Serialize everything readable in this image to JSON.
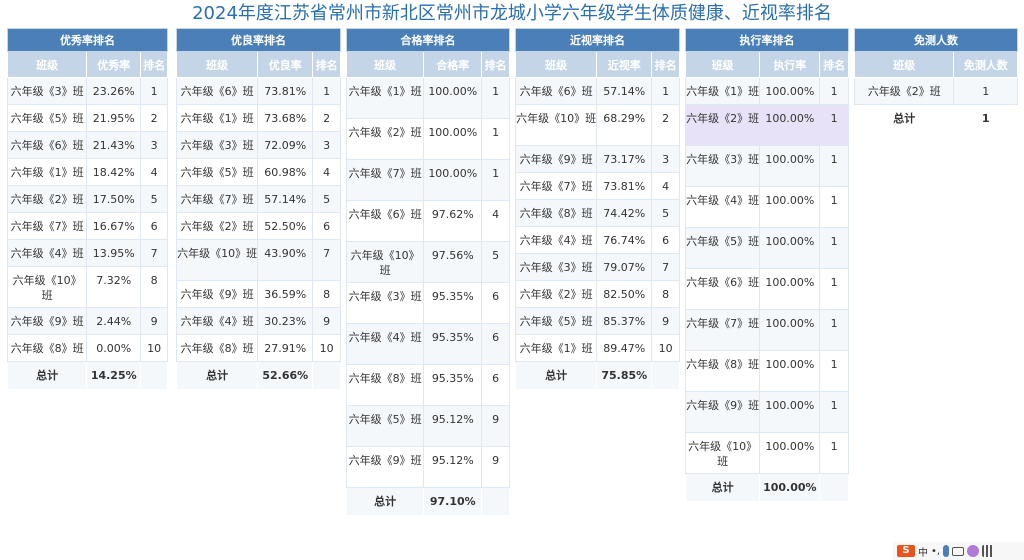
{
  "title": "2024年度江苏省常州市新北区常州市龙城小学六年级学生体质健康、近视率排名",
  "total_label": "总计",
  "panels": [
    {
      "caption": "优秀率排名",
      "headers": [
        "班级",
        "优秀率",
        "排名"
      ],
      "rows": [
        [
          "六年级《3》班",
          "23.26%",
          "1"
        ],
        [
          "六年级《5》班",
          "21.95%",
          "2"
        ],
        [
          "六年级《6》班",
          "21.43%",
          "3"
        ],
        [
          "六年级《1》班",
          "18.42%",
          "4"
        ],
        [
          "六年级《2》班",
          "17.50%",
          "5"
        ],
        [
          "六年级《7》班",
          "16.67%",
          "6"
        ],
        [
          "六年级《4》班",
          "13.95%",
          "7"
        ],
        [
          "六年级《10》班",
          "7.32%",
          "8"
        ],
        [
          "六年级《9》班",
          "2.44%",
          "9"
        ],
        [
          "六年级《8》班",
          "0.00%",
          "10"
        ]
      ],
      "total": "14.25%"
    },
    {
      "caption": "优良率排名",
      "headers": [
        "班级",
        "优良率",
        "排名"
      ],
      "rows": [
        [
          "六年级《6》班",
          "73.81%",
          "1"
        ],
        [
          "六年级《1》班",
          "73.68%",
          "2"
        ],
        [
          "六年级《3》班",
          "72.09%",
          "3"
        ],
        [
          "六年级《5》班",
          "60.98%",
          "4"
        ],
        [
          "六年级《7》班",
          "57.14%",
          "5"
        ],
        [
          "六年级《2》班",
          "52.50%",
          "6"
        ],
        [
          "六年级《10》班",
          "43.90%",
          "7"
        ],
        [
          "六年级《9》班",
          "36.59%",
          "8"
        ],
        [
          "六年级《4》班",
          "30.23%",
          "9"
        ],
        [
          "六年级《8》班",
          "27.91%",
          "10"
        ]
      ],
      "total": "52.66%"
    },
    {
      "caption": "合格率排名",
      "headers": [
        "班级",
        "合格率",
        "排名"
      ],
      "rows": [
        [
          "六年级《1》班",
          "100.00%",
          "1"
        ],
        [
          "六年级《2》班",
          "100.00%",
          "1"
        ],
        [
          "六年级《7》班",
          "100.00%",
          "1"
        ],
        [
          "六年级《6》班",
          "97.62%",
          "4"
        ],
        [
          "六年级《10》班",
          "97.56%",
          "5"
        ],
        [
          "六年级《3》班",
          "95.35%",
          "6"
        ],
        [
          "六年级《4》班",
          "95.35%",
          "6"
        ],
        [
          "六年级《8》班",
          "95.35%",
          "6"
        ],
        [
          "六年级《5》班",
          "95.12%",
          "9"
        ],
        [
          "六年级《9》班",
          "95.12%",
          "9"
        ]
      ],
      "total": "97.10%"
    },
    {
      "caption": "近视率排名",
      "headers": [
        "班级",
        "近视率",
        "排名"
      ],
      "rows": [
        [
          "六年级《6》班",
          "57.14%",
          "1"
        ],
        [
          "六年级《10》班",
          "68.29%",
          "2"
        ],
        [
          "六年级《9》班",
          "73.17%",
          "3"
        ],
        [
          "六年级《7》班",
          "73.81%",
          "4"
        ],
        [
          "六年级《8》班",
          "74.42%",
          "5"
        ],
        [
          "六年级《4》班",
          "76.74%",
          "6"
        ],
        [
          "六年级《3》班",
          "79.07%",
          "7"
        ],
        [
          "六年级《2》班",
          "82.50%",
          "8"
        ],
        [
          "六年级《5》班",
          "85.37%",
          "9"
        ],
        [
          "六年级《1》班",
          "89.47%",
          "10"
        ]
      ],
      "total": "75.85%"
    },
    {
      "caption": "执行率排名",
      "headers": [
        "班级",
        "执行率",
        "排名"
      ],
      "rows": [
        [
          "六年级《1》班",
          "100.00%",
          "1"
        ],
        [
          "六年级《2》班",
          "100.00%",
          "1"
        ],
        [
          "六年级《3》班",
          "100.00%",
          "1"
        ],
        [
          "六年级《4》班",
          "100.00%",
          "1"
        ],
        [
          "六年级《5》班",
          "100.00%",
          "1"
        ],
        [
          "六年级《6》班",
          "100.00%",
          "1"
        ],
        [
          "六年级《7》班",
          "100.00%",
          "1"
        ],
        [
          "六年级《8》班",
          "100.00%",
          "1"
        ],
        [
          "六年级《9》班",
          "100.00%",
          "1"
        ],
        [
          "六年级《10》班",
          "100.00%",
          "1"
        ]
      ],
      "total": "100.00%"
    }
  ],
  "exempt": {
    "caption": "免测人数",
    "headers": [
      "班级",
      "免测人数"
    ],
    "rows": [
      [
        "六年级《2》班",
        "1"
      ]
    ],
    "total": "1"
  },
  "taskbar": {
    "ime_logo": "S",
    "ime_mode": "中",
    "icons": [
      "punctuation-icon",
      "microphone-icon",
      "keyboard-icon",
      "skin-icon",
      "grid-icon"
    ]
  }
}
